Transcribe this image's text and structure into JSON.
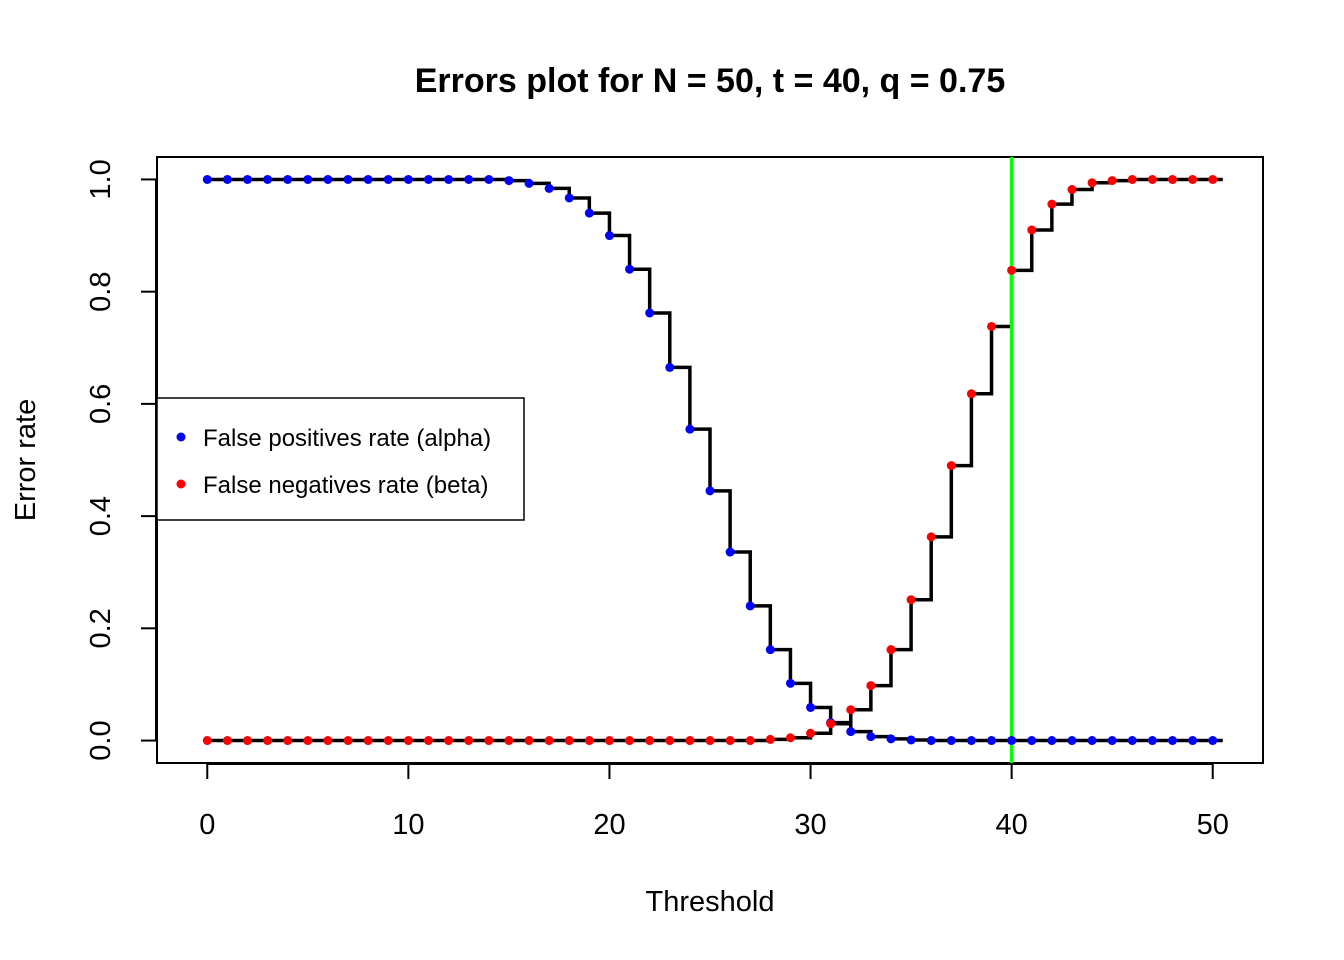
{
  "chart_data": {
    "type": "line",
    "title": "Errors plot for N = 50, t = 40, q = 0.75",
    "xlabel": "Threshold",
    "ylabel": "Error rate",
    "xlim": [
      -2.5,
      52.5
    ],
    "ylim": [
      -0.04,
      1.04
    ],
    "x_ticks": [
      0,
      10,
      20,
      30,
      40,
      50
    ],
    "y_ticks": [
      0.0,
      0.2,
      0.4,
      0.6,
      0.8,
      1.0
    ],
    "x_tick_labels": [
      "0",
      "10",
      "20",
      "30",
      "40",
      "50"
    ],
    "y_tick_labels": [
      "0.0",
      "0.2",
      "0.4",
      "0.6",
      "0.8",
      "1.0"
    ],
    "x": [
      0,
      1,
      2,
      3,
      4,
      5,
      6,
      7,
      8,
      9,
      10,
      11,
      12,
      13,
      14,
      15,
      16,
      17,
      18,
      19,
      20,
      21,
      22,
      23,
      24,
      25,
      26,
      27,
      28,
      29,
      30,
      31,
      32,
      33,
      34,
      35,
      36,
      37,
      38,
      39,
      40,
      41,
      42,
      43,
      44,
      45,
      46,
      47,
      48,
      49,
      50
    ],
    "series": [
      {
        "name": "False positives rate (alpha)",
        "color": "#0000ff",
        "step_color": "#000000",
        "values": [
          1,
          1,
          1,
          1,
          1,
          1,
          1,
          1,
          1,
          1,
          1,
          1,
          1,
          1,
          1,
          0.998,
          0.993,
          0.984,
          0.967,
          0.94,
          0.9,
          0.84,
          0.762,
          0.665,
          0.555,
          0.445,
          0.336,
          0.24,
          0.162,
          0.102,
          0.059,
          0.032,
          0.016,
          0.007,
          0.003,
          0.001,
          0,
          0,
          0,
          0,
          0,
          0,
          0,
          0,
          0,
          0,
          0,
          0,
          0,
          0,
          0
        ]
      },
      {
        "name": "False negatives rate (beta)",
        "color": "#ff0000",
        "step_color": "#000000",
        "values": [
          0,
          0,
          0,
          0,
          0,
          0,
          0,
          0,
          0,
          0,
          0,
          0,
          0,
          0,
          0,
          0,
          0,
          0,
          0,
          0,
          0,
          0,
          0,
          0,
          0,
          0,
          0,
          0,
          0.002,
          0.005,
          0.013,
          0.03,
          0.055,
          0.098,
          0.162,
          0.251,
          0.363,
          0.49,
          0.618,
          0.738,
          0.838,
          0.91,
          0.956,
          0.982,
          0.994,
          0.998,
          1,
          1,
          1,
          1,
          1
        ]
      }
    ],
    "vertical_line": {
      "x": 40,
      "color": "#00ff00"
    },
    "legend": {
      "position": "left",
      "boxed": true
    },
    "grid": false
  }
}
